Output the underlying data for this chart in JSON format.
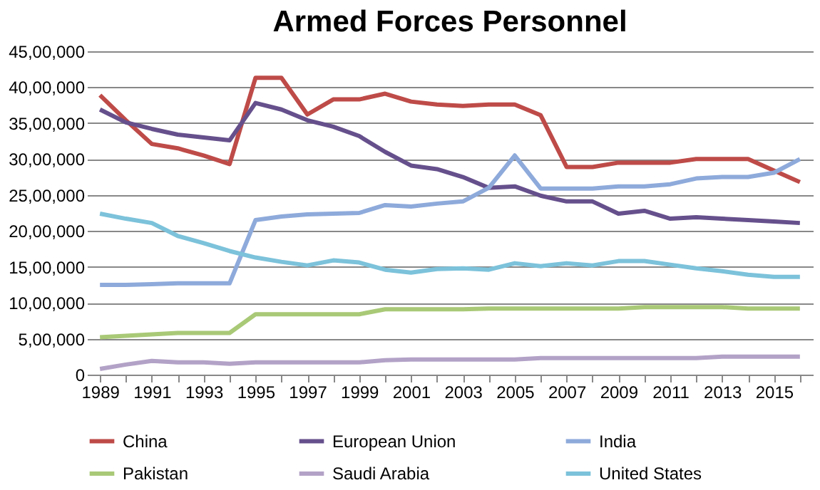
{
  "chart_data": {
    "type": "line",
    "title": "Armed Forces Personnel",
    "categories": [
      "1989",
      null,
      "1991",
      null,
      "1993",
      null,
      "1995",
      null,
      "1997",
      null,
      "1999",
      null,
      "2001",
      null,
      "2003",
      null,
      "2005",
      null,
      "2007",
      null,
      "2009",
      null,
      "2011",
      null,
      "2013",
      null,
      "2015",
      null
    ],
    "series": [
      {
        "name": "China",
        "color": "#be4b48",
        "values": [
          3890000,
          3540000,
          3210000,
          3150000,
          3050000,
          2930000,
          4130000,
          4130000,
          3620000,
          3830000,
          3830000,
          3910000,
          3800000,
          3760000,
          3740000,
          3760000,
          3760000,
          3610000,
          2890000,
          2890000,
          2950000,
          2950000,
          2950000,
          3000000,
          3000000,
          3000000,
          2840000,
          2680000
        ]
      },
      {
        "name": "European Union",
        "color": "#66508c",
        "values": [
          3690000,
          3510000,
          3420000,
          3340000,
          3300000,
          3260000,
          3780000,
          3690000,
          3540000,
          3450000,
          3320000,
          3100000,
          2910000,
          2860000,
          2750000,
          2600000,
          2620000,
          2490000,
          2410000,
          2410000,
          2240000,
          2280000,
          2170000,
          2190000,
          2170000,
          2150000,
          2130000,
          2110000
        ]
      },
      {
        "name": "India",
        "color": "#8eaadb",
        "values": [
          1250000,
          1250000,
          1260000,
          1270000,
          1270000,
          1270000,
          2150000,
          2200000,
          2230000,
          2240000,
          2250000,
          2360000,
          2340000,
          2380000,
          2410000,
          2600000,
          3050000,
          2590000,
          2590000,
          2590000,
          2620000,
          2620000,
          2650000,
          2730000,
          2750000,
          2750000,
          2810000,
          3000000
        ]
      },
      {
        "name": "Pakistan",
        "color": "#a9c977",
        "values": [
          520000,
          540000,
          560000,
          580000,
          580000,
          580000,
          840000,
          840000,
          840000,
          840000,
          840000,
          910000,
          910000,
          910000,
          910000,
          920000,
          920000,
          920000,
          920000,
          920000,
          920000,
          940000,
          940000,
          940000,
          940000,
          920000,
          920000,
          920000
        ]
      },
      {
        "name": "Saudi Arabia",
        "color": "#b3a2c7",
        "values": [
          80000,
          140000,
          190000,
          170000,
          170000,
          150000,
          170000,
          170000,
          170000,
          170000,
          170000,
          200000,
          210000,
          210000,
          210000,
          210000,
          210000,
          230000,
          230000,
          230000,
          230000,
          230000,
          230000,
          230000,
          250000,
          250000,
          250000,
          250000
        ]
      },
      {
        "name": "United States",
        "color": "#7cc2da",
        "values": [
          2240000,
          2170000,
          2110000,
          1930000,
          1830000,
          1720000,
          1630000,
          1570000,
          1520000,
          1590000,
          1560000,
          1460000,
          1420000,
          1470000,
          1480000,
          1460000,
          1550000,
          1510000,
          1550000,
          1520000,
          1580000,
          1580000,
          1530000,
          1480000,
          1440000,
          1390000,
          1360000,
          1360000
        ]
      }
    ],
    "ylim": [
      0,
      4500000
    ],
    "yticks": [
      0,
      {
        "value": 500000,
        "label": "5,00,000"
      },
      {
        "value": 1000000,
        "label": "10,00,000"
      },
      {
        "value": 1500000,
        "label": "15,00,000"
      },
      {
        "value": 2000000,
        "label": "20,00,000"
      },
      {
        "value": 2500000,
        "label": "25,00,000"
      },
      {
        "value": 3000000,
        "label": "30,00,000"
      },
      {
        "value": 3500000,
        "label": "35,00,000"
      },
      {
        "value": 4000000,
        "label": "40,00,000"
      },
      {
        "value": 4500000,
        "label": "45,00,000"
      }
    ],
    "grid": "y",
    "legend": "bottom",
    "marker": "none",
    "line_style": "solid"
  }
}
